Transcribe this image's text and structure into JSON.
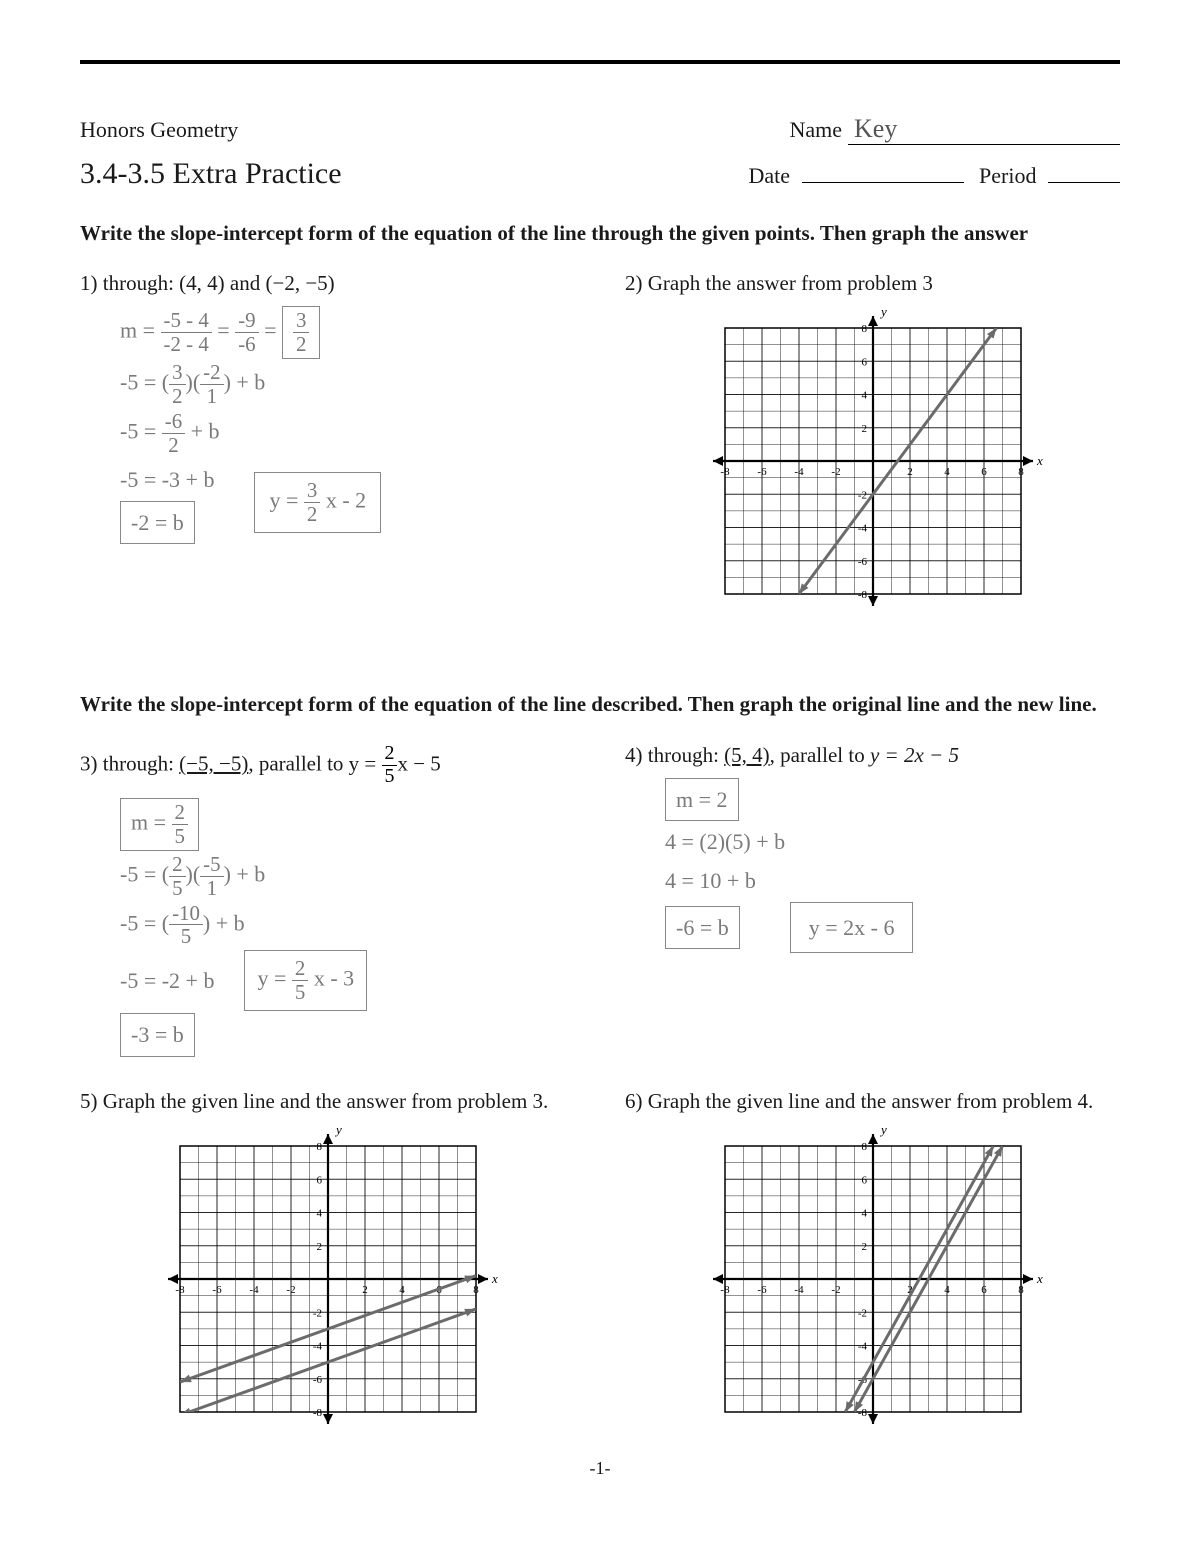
{
  "header": {
    "course": "Honors Geometry",
    "name_label": "Name",
    "name_value": "Key",
    "title": "3.4-3.5 Extra Practice",
    "date_label": "Date",
    "period_label": "Period"
  },
  "section1": {
    "instructions": "Write the slope-intercept form of the equation of the line through the given points. Then graph the answer"
  },
  "problem1": {
    "num": "1)",
    "prompt_pre": "through: ",
    "points": "(4, 4) and (−2, −5)",
    "work": {
      "line1_a": "m =",
      "line1_frac1_num": "-5 - 4",
      "line1_frac1_den": "-2 - 4",
      "line1_eq": "=",
      "line1_frac2_num": "-9",
      "line1_frac2_den": "-6",
      "line1_eq2": "=",
      "line1_ans_num": "3",
      "line1_ans_den": "2",
      "line2_a": "-5 = (",
      "line2_m_num": "3",
      "line2_m_den": "2",
      "line2_b": ")(",
      "line2_x_num": "-2",
      "line2_x_den": "1",
      "line2_c": ") + b",
      "line3_a": "-5 =",
      "line3_frac_num": "-6",
      "line3_frac_den": "2",
      "line3_b": "+ b",
      "line4": "-5 = -3 + b",
      "line5": "-2 = b",
      "answer_pre": "y =",
      "answer_m_num": "3",
      "answer_m_den": "2",
      "answer_post": "x - 2"
    }
  },
  "problem2": {
    "num": "2)",
    "prompt": "Graph the answer from problem 3",
    "chart": {
      "xlim": [
        -8,
        8
      ],
      "ylim": [
        -8,
        8
      ],
      "tick_step": 2,
      "grid_color": "#000000",
      "line_color": "#6b6b6b",
      "line_points": [
        [
          -4,
          -8
        ],
        [
          6.67,
          8
        ]
      ],
      "labels": {
        "x": "x",
        "y": "y"
      }
    }
  },
  "section2": {
    "instructions": "Write the slope-intercept form of the equation of the line described.  Then graph the original line and the new line."
  },
  "problem3": {
    "num": "3)",
    "prompt_pre": "through: ",
    "point": "(−5, −5)",
    "prompt_mid": ",  parallel to ",
    "given_eq_pre": "y =",
    "given_m_num": "2",
    "given_m_den": "5",
    "given_eq_post": "x − 5",
    "work": {
      "mline": "m =",
      "m_num": "2",
      "m_den": "5",
      "l1_a": "-5 = (",
      "l1_m_num": "2",
      "l1_m_den": "5",
      "l1_b": ")(",
      "l1_x_num": "-5",
      "l1_x_den": "1",
      "l1_c": ") + b",
      "l2_a": "-5 = (",
      "l2_frac_num": "-10",
      "l2_frac_den": "5",
      "l2_b": ") + b",
      "l3": "-5 = -2 + b",
      "l4": "-3 = b",
      "ans_pre": "y =",
      "ans_m_num": "2",
      "ans_m_den": "5",
      "ans_post": "x - 3"
    }
  },
  "problem4": {
    "num": "4)",
    "prompt_pre": "through: ",
    "point": "(5, 4)",
    "prompt_mid": ",  parallel to ",
    "given_eq": "y = 2x − 5",
    "work": {
      "mline": "m = 2",
      "l1": "4 = (2)(5) + b",
      "l2": "4 = 10 + b",
      "l3": "-6 = b",
      "ans": "y = 2x - 6"
    }
  },
  "problem5": {
    "num": "5)",
    "prompt": "Graph the given line and the answer from problem 3.",
    "chart": {
      "xlim": [
        -8,
        8
      ],
      "ylim": [
        -8,
        8
      ],
      "tick_step": 2,
      "grid_color": "#000000",
      "line_color": "#6b6b6b",
      "lines": [
        {
          "points": [
            [
              -8,
              -8.2
            ],
            [
              8,
              -1.8
            ]
          ]
        },
        {
          "points": [
            [
              -8,
              -6.2
            ],
            [
              8,
              0.2
            ]
          ]
        }
      ],
      "labels": {
        "x": "x",
        "y": "y"
      }
    }
  },
  "problem6": {
    "num": "6)",
    "prompt": "Graph the given line and the answer from problem 4.",
    "chart": {
      "xlim": [
        -8,
        8
      ],
      "ylim": [
        -8,
        8
      ],
      "tick_step": 2,
      "grid_color": "#000000",
      "line_color": "#6b6b6b",
      "lines": [
        {
          "points": [
            [
              -1.5,
              -8
            ],
            [
              6.5,
              8
            ]
          ]
        },
        {
          "points": [
            [
              -1,
              -8
            ],
            [
              7,
              8
            ]
          ]
        }
      ],
      "labels": {
        "x": "x",
        "y": "y"
      }
    }
  },
  "page_num": "-1-"
}
